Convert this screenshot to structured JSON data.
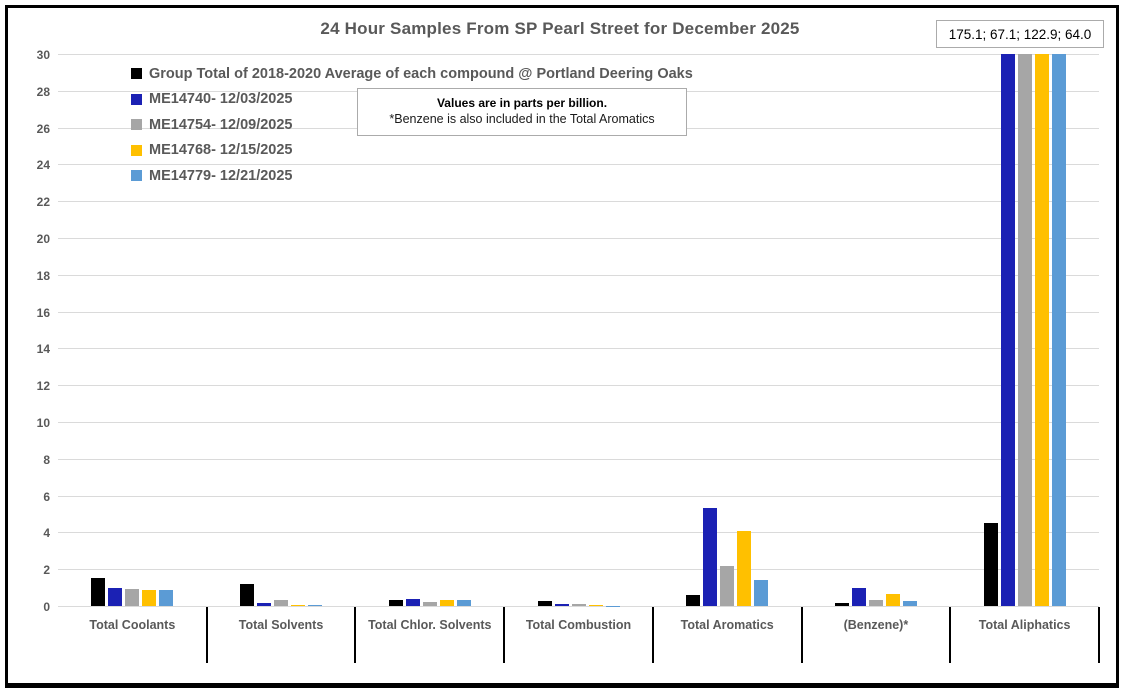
{
  "chart_data": {
    "type": "bar",
    "title": "24 Hour Samples From SP Pearl Street for December 2025",
    "categories": [
      "Total Coolants",
      "Total Solvents",
      "Total Chlor. Solvents",
      "Total Combustion",
      "Total Aromatics",
      "(Benzene)*",
      "Total Aliphatics"
    ],
    "series": [
      {
        "name": "Group Total of 2018-2020 Average of each compound @ Portland Deering Oaks",
        "color": "#000000",
        "values": [
          1.5,
          1.2,
          0.35,
          0.25,
          0.6,
          0.15,
          4.5
        ]
      },
      {
        "name": "ME14740- 12/03/2025",
        "color": "#1b21b4",
        "values": [
          1.0,
          0.15,
          0.4,
          0.12,
          5.3,
          1.0,
          175.1
        ]
      },
      {
        "name": "ME14754- 12/09/2025",
        "color": "#a6a6a6",
        "values": [
          0.9,
          0.3,
          0.2,
          0.1,
          2.2,
          0.35,
          67.1
        ]
      },
      {
        "name": "ME14768- 12/15/2025",
        "color": "#ffc000",
        "values": [
          0.85,
          0.08,
          0.3,
          0.03,
          4.1,
          0.65,
          122.9
        ]
      },
      {
        "name": "ME14779- 12/21/2025",
        "color": "#5b9bd5",
        "values": [
          0.85,
          0.08,
          0.3,
          0.02,
          1.4,
          0.25,
          64.0
        ]
      }
    ],
    "ylim": [
      0,
      30
    ],
    "ytick_step": 2,
    "grid": true,
    "legend_position": "top-left",
    "units": "parts per billion",
    "clipping": "Total Aliphatics sample bars exceed y-axis max of 30 and are clipped; true values shown in callout box",
    "annotations": {
      "clipped_box": "175.1; 67.1; 122.9; 64.0",
      "note_line1": "Values are in parts per billion.",
      "note_line2": "*Benzene is also included in the Total Aromatics"
    }
  }
}
